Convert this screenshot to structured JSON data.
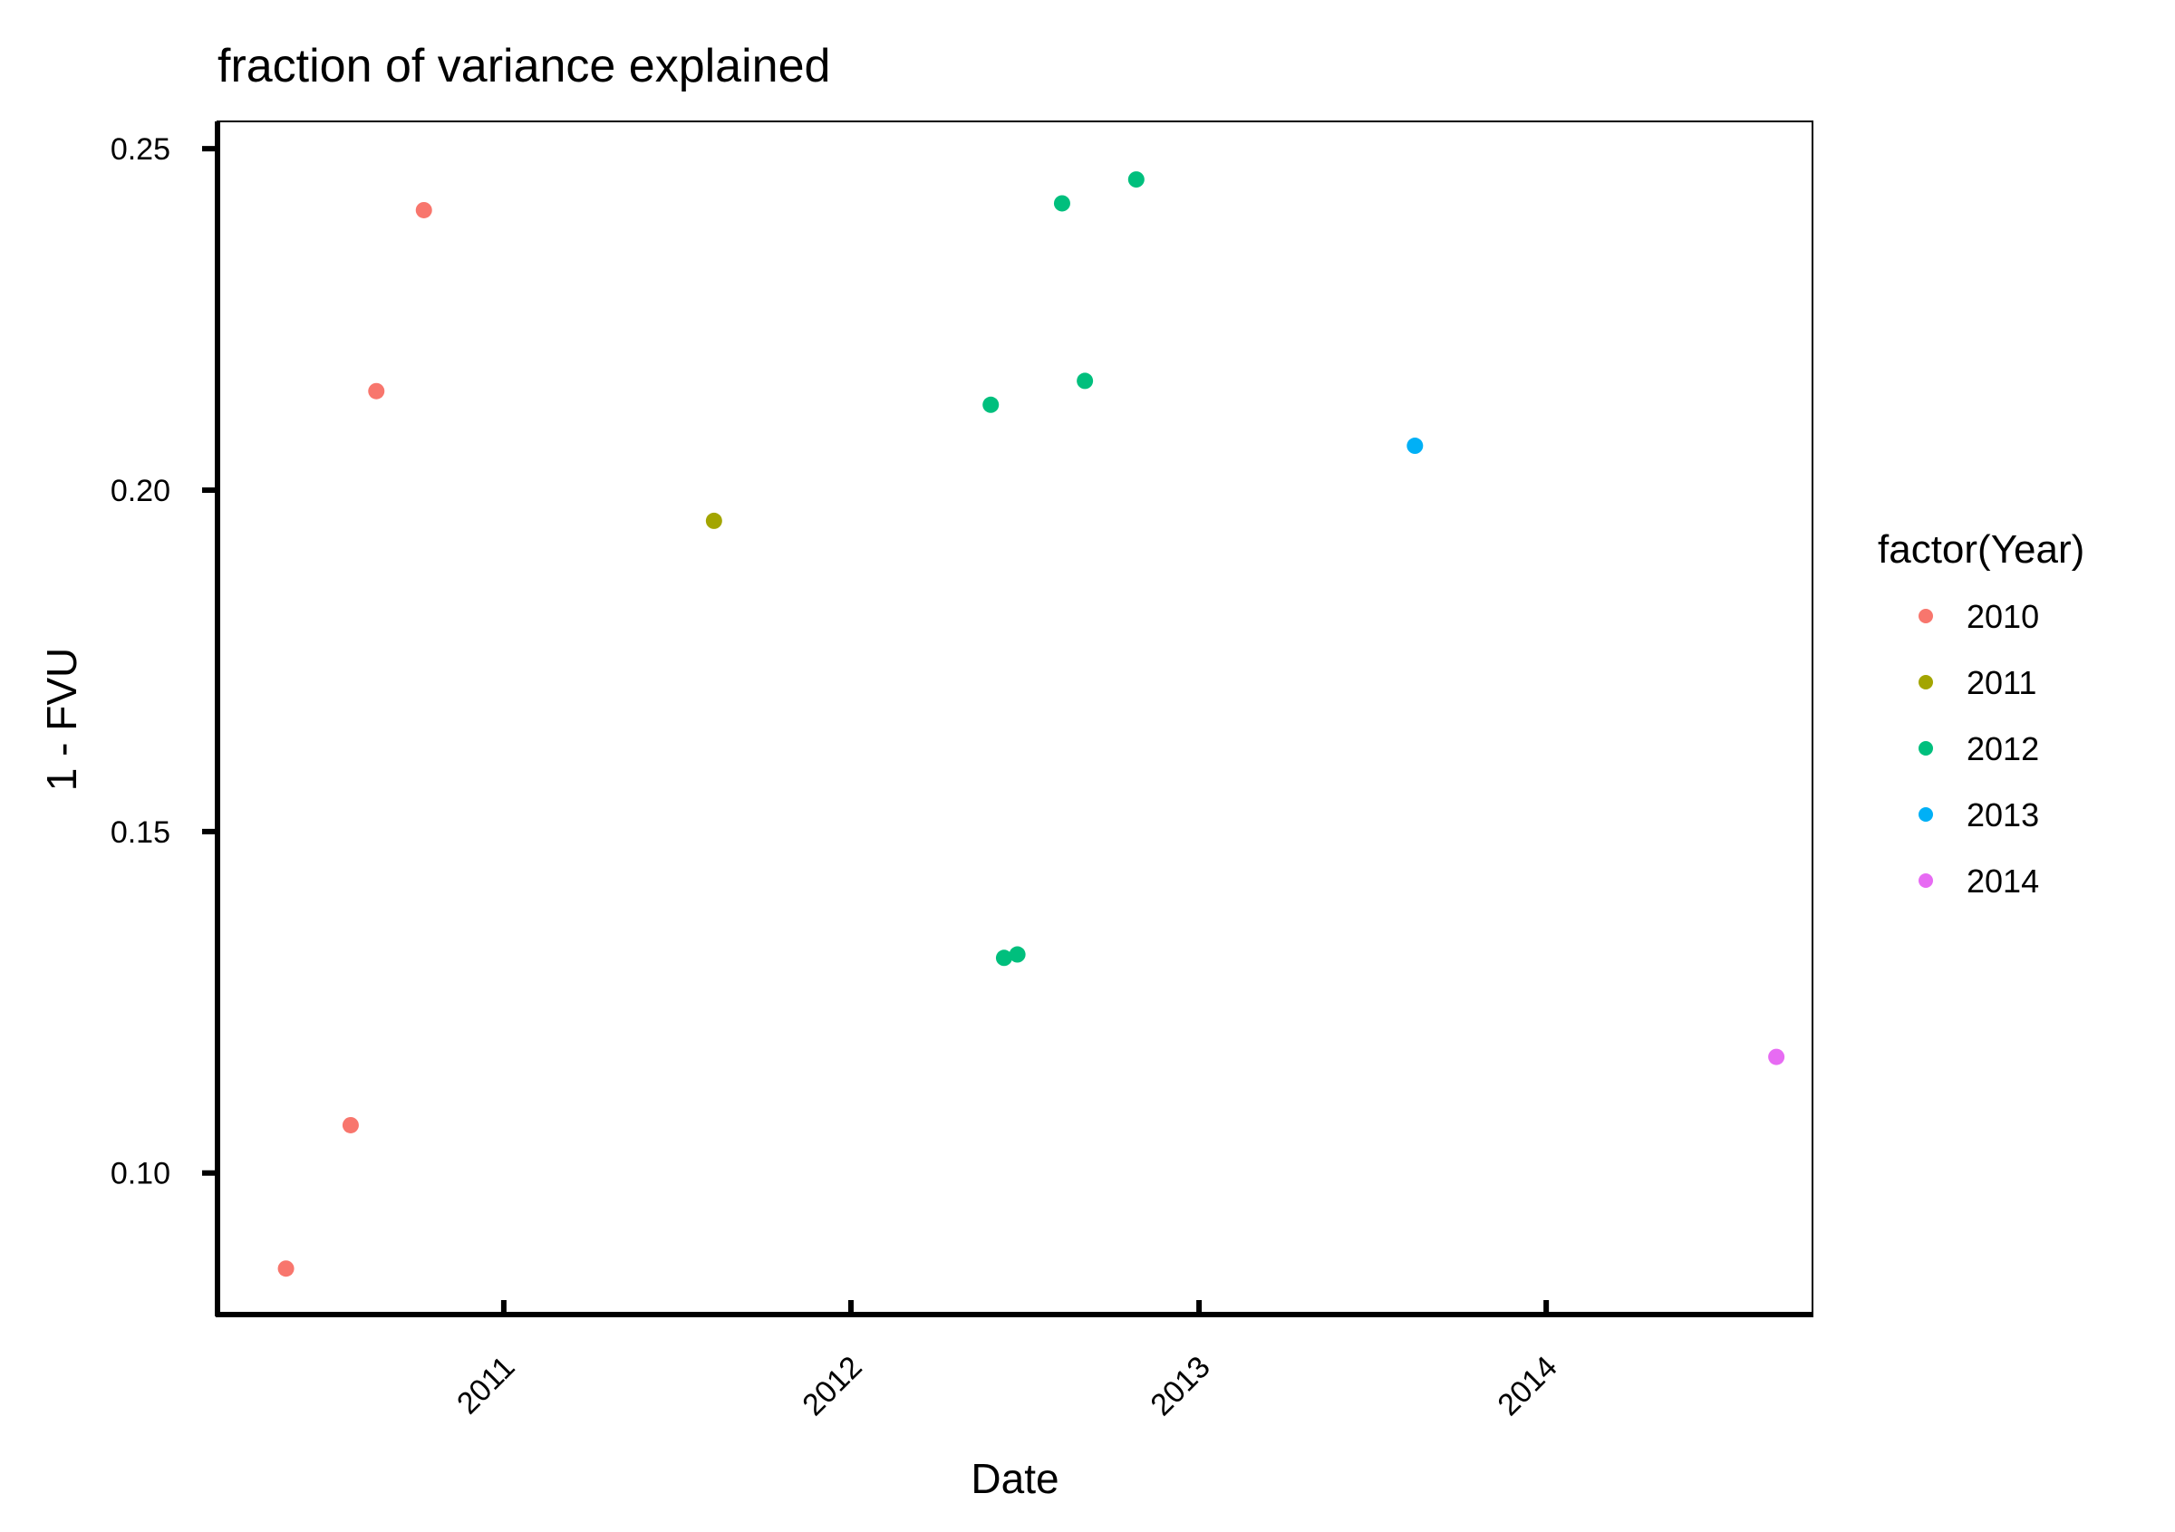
{
  "chart_data": {
    "type": "scatter",
    "title": "fraction of variance explained",
    "xlabel": "Date",
    "ylabel": "1 - FVU",
    "x_is_date": true,
    "xlim": [
      "2010-03-06",
      "2014-10-08"
    ],
    "ylim": [
      0.079,
      0.254
    ],
    "x_ticks": [
      "2011",
      "2012",
      "2013",
      "2014"
    ],
    "y_ticks": [
      "0.10",
      "0.15",
      "0.20",
      "0.25"
    ],
    "grid": false,
    "legend": {
      "title": "factor(Year)",
      "position": "right",
      "entries": [
        "2010",
        "2011",
        "2012",
        "2013",
        "2014"
      ]
    },
    "series": [
      {
        "name": "2010",
        "color": "#F8766D",
        "points": [
          {
            "x": "2010-05-17",
            "y": 0.086
          },
          {
            "x": "2010-07-24",
            "y": 0.107
          },
          {
            "x": "2010-08-20",
            "y": 0.2145
          },
          {
            "x": "2010-10-09",
            "y": 0.241
          }
        ]
      },
      {
        "name": "2011",
        "color": "#A3A500",
        "points": [
          {
            "x": "2011-08-10",
            "y": 0.1955
          }
        ]
      },
      {
        "name": "2012",
        "color": "#00BF7D",
        "points": [
          {
            "x": "2012-05-27",
            "y": 0.2125
          },
          {
            "x": "2012-06-10",
            "y": 0.1315
          },
          {
            "x": "2012-06-24",
            "y": 0.132
          },
          {
            "x": "2012-08-10",
            "y": 0.242
          },
          {
            "x": "2012-09-03",
            "y": 0.216
          },
          {
            "x": "2012-10-27",
            "y": 0.2455
          }
        ]
      },
      {
        "name": "2013",
        "color": "#00B0F6",
        "points": [
          {
            "x": "2013-08-16",
            "y": 0.2065
          }
        ]
      },
      {
        "name": "2014",
        "color": "#E76BF3",
        "points": [
          {
            "x": "2014-08-31",
            "y": 0.117
          }
        ]
      }
    ]
  }
}
